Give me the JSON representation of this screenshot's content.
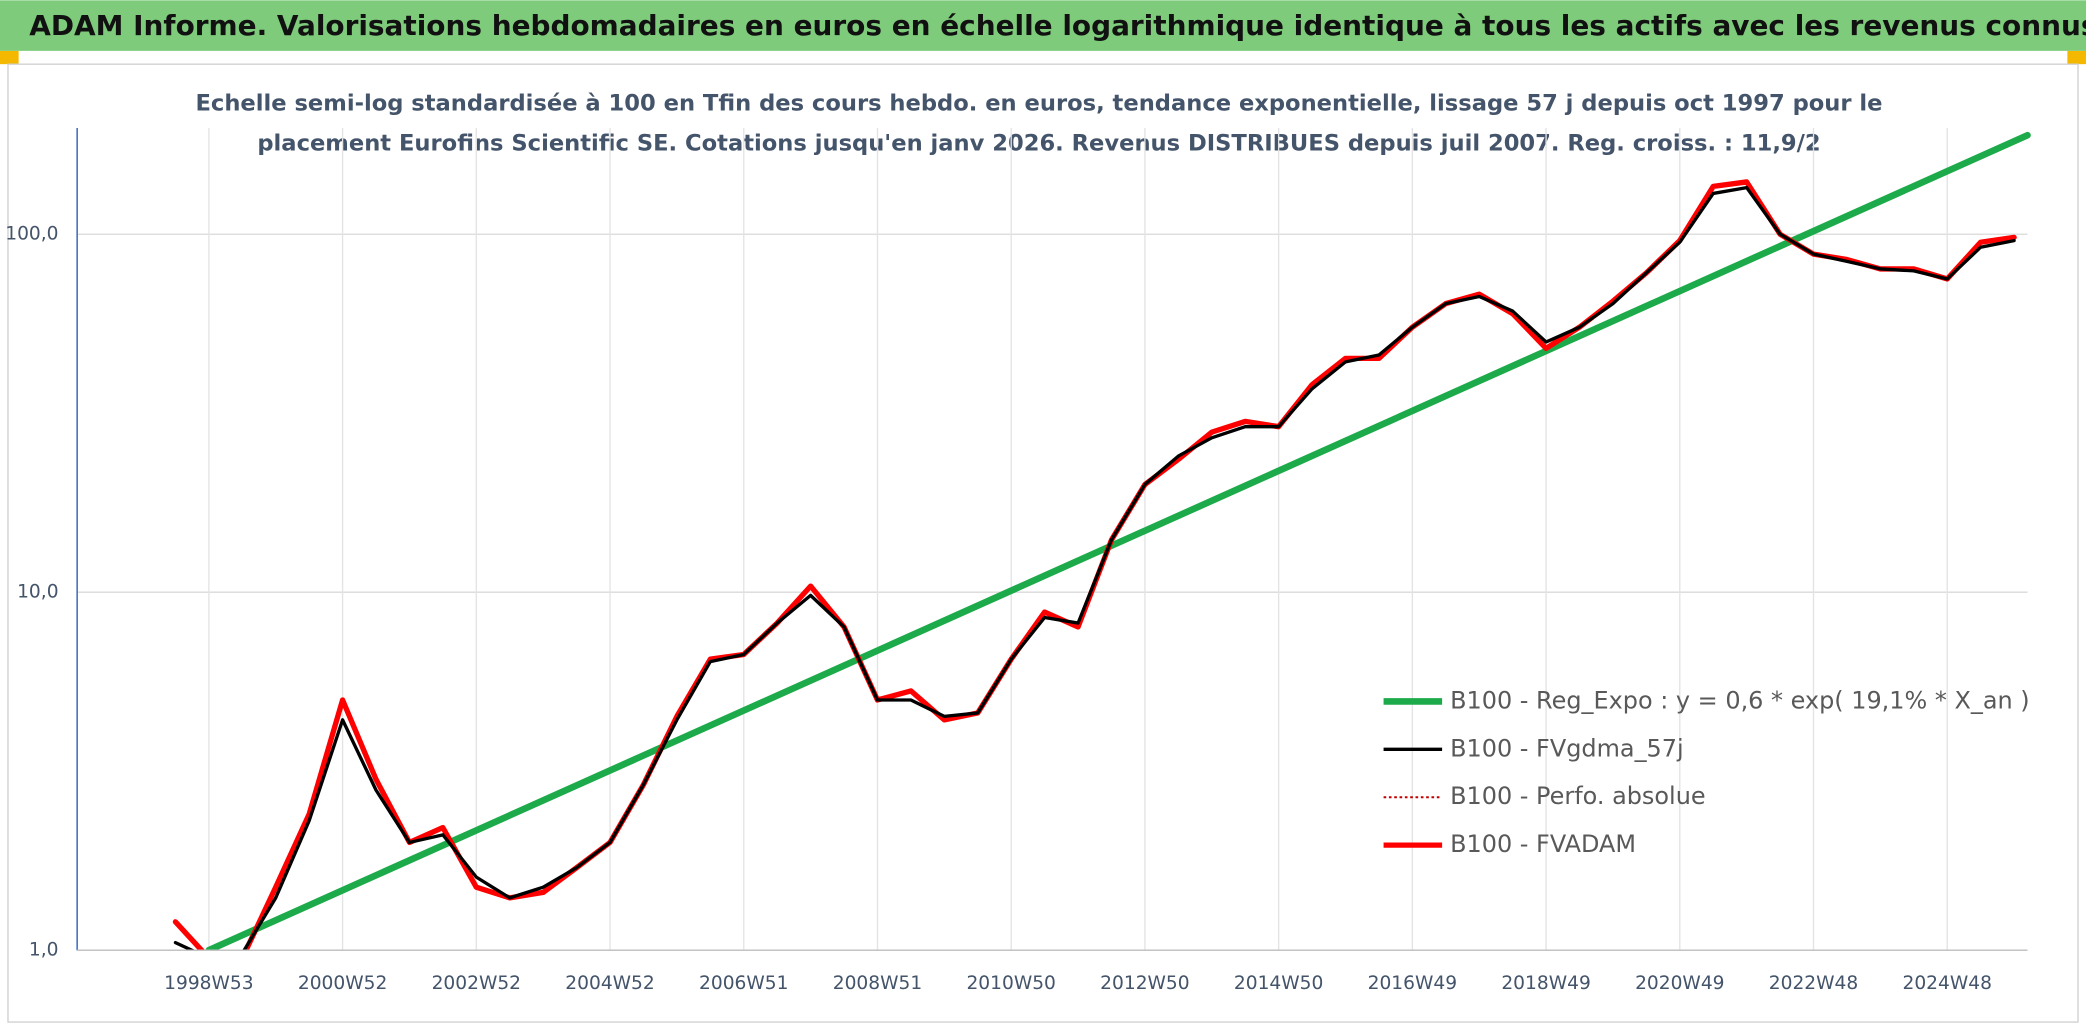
{
  "page_title": "ADAM Informe. Valorisations hebdomadaires en euros en échelle logarithmique identique à tous les actifs avec les revenus connus distribués",
  "chart_data": {
    "type": "line",
    "title": [
      "Echelle semi-log standardisée à 100 en Tfin des cours hebdo. en euros, tendance exponentielle, lissage 57 j depuis oct 1997 pour le",
      "placement Eurofins Scientific SE. Cotations jusqu'en janv 2026. Revenus DISTRIBUES depuis juil 2007. Reg. croiss. : 11,9/2"
    ],
    "log_scale": true,
    "grid": true,
    "legend": "lower right",
    "xlim": [
      1997.03,
      2026.2
    ],
    "ylim": [
      1,
      198
    ],
    "yticks": [
      {
        "value": 1,
        "label": "1,0"
      },
      {
        "value": 10,
        "label": "10,0"
      },
      {
        "value": 100,
        "label": "100,0"
      }
    ],
    "xticks": [
      {
        "value": 1999,
        "label": "1998W53"
      },
      {
        "value": 2001,
        "label": "2000W52"
      },
      {
        "value": 2003,
        "label": "2002W52"
      },
      {
        "value": 2005,
        "label": "2004W52"
      },
      {
        "value": 2007,
        "label": "2006W51"
      },
      {
        "value": 2009,
        "label": "2008W51"
      },
      {
        "value": 2011,
        "label": "2010W50"
      },
      {
        "value": 2013,
        "label": "2012W50"
      },
      {
        "value": 2015,
        "label": "2014W50"
      },
      {
        "value": 2017,
        "label": "2016W49"
      },
      {
        "value": 2019,
        "label": "2018W49"
      },
      {
        "value": 2021,
        "label": "2020W49"
      },
      {
        "value": 2023,
        "label": "2022W48"
      },
      {
        "value": 2025,
        "label": "2024W48"
      }
    ],
    "x": [
      1998.5,
      1999,
      1999.5,
      2000,
      2000.5,
      2001,
      2001.5,
      2002,
      2002.5,
      2003,
      2003.5,
      2004,
      2004.5,
      2005,
      2005.5,
      2006,
      2006.5,
      2007,
      2007.5,
      2008,
      2008.5,
      2009,
      2009.5,
      2010,
      2010.5,
      2011,
      2011.5,
      2012,
      2012.5,
      2013,
      2013.5,
      2014,
      2014.5,
      2015,
      2015.5,
      2016,
      2016.5,
      2017,
      2017.5,
      2018,
      2018.5,
      2019,
      2019.5,
      2020,
      2020.5,
      2021,
      2021.5,
      2022,
      2022.5,
      2023,
      2023.5,
      2024,
      2024.5,
      2025,
      2025.5,
      2026
    ],
    "series": [
      {
        "name": "B100 - Reg_Expo : y = 0,6 * exp( 19,1% *  X_an )",
        "color": "#1daa4a",
        "width": 5,
        "x": [
          1999,
          2026.2
        ],
        "values": [
          1.0,
          189
        ]
      },
      {
        "name": "B100 - FVgdma_57j",
        "color": "#000000",
        "width": 2.5,
        "values": [
          1.05,
          0.95,
          0.98,
          1.4,
          2.3,
          4.4,
          2.8,
          2.0,
          2.1,
          1.6,
          1.4,
          1.5,
          1.7,
          2.0,
          2.9,
          4.4,
          6.4,
          6.7,
          8.2,
          9.8,
          8,
          5,
          5,
          4.5,
          4.6,
          6.5,
          8.5,
          8.2,
          14,
          20,
          24,
          27,
          29,
          29,
          37,
          44,
          46,
          55,
          64,
          67,
          61,
          50,
          55,
          64,
          78,
          95,
          130,
          135,
          100,
          88,
          84,
          80,
          79,
          75,
          92,
          96
        ]
      },
      {
        "name": "B100 - Perfo. absolue",
        "color": "#c00000",
        "width": 1.5,
        "style": "dotted",
        "values": [
          1.2,
          0.95,
          0.95,
          1.5,
          2.4,
          5.0,
          3.0,
          2.0,
          2.2,
          1.5,
          1.4,
          1.45,
          1.7,
          2.0,
          2.9,
          4.5,
          6.5,
          6.7,
          8.2,
          10.4,
          8,
          5,
          5.3,
          4.4,
          4.6,
          6.5,
          8.8,
          8,
          14,
          20,
          23.5,
          28,
          30,
          29,
          38,
          45,
          45,
          55,
          64,
          68,
          60,
          48,
          55,
          65,
          78,
          96,
          136,
          140,
          100,
          88,
          85,
          80,
          80,
          75,
          95,
          98
        ]
      },
      {
        "name": "B100 - FVADAM",
        "color": "#ff0000",
        "width": 4,
        "values": [
          1.2,
          0.95,
          0.95,
          1.5,
          2.4,
          5.0,
          3.0,
          2.0,
          2.2,
          1.5,
          1.4,
          1.45,
          1.7,
          2.0,
          2.9,
          4.5,
          6.5,
          6.7,
          8.2,
          10.4,
          8,
          5,
          5.3,
          4.4,
          4.6,
          6.5,
          8.8,
          8,
          14,
          20,
          23.5,
          28,
          30,
          29,
          38,
          45,
          45,
          55,
          64,
          68,
          60,
          48,
          55,
          65,
          78,
          96,
          136,
          140,
          100,
          88,
          85,
          80,
          80,
          75,
          95,
          98
        ]
      }
    ]
  }
}
